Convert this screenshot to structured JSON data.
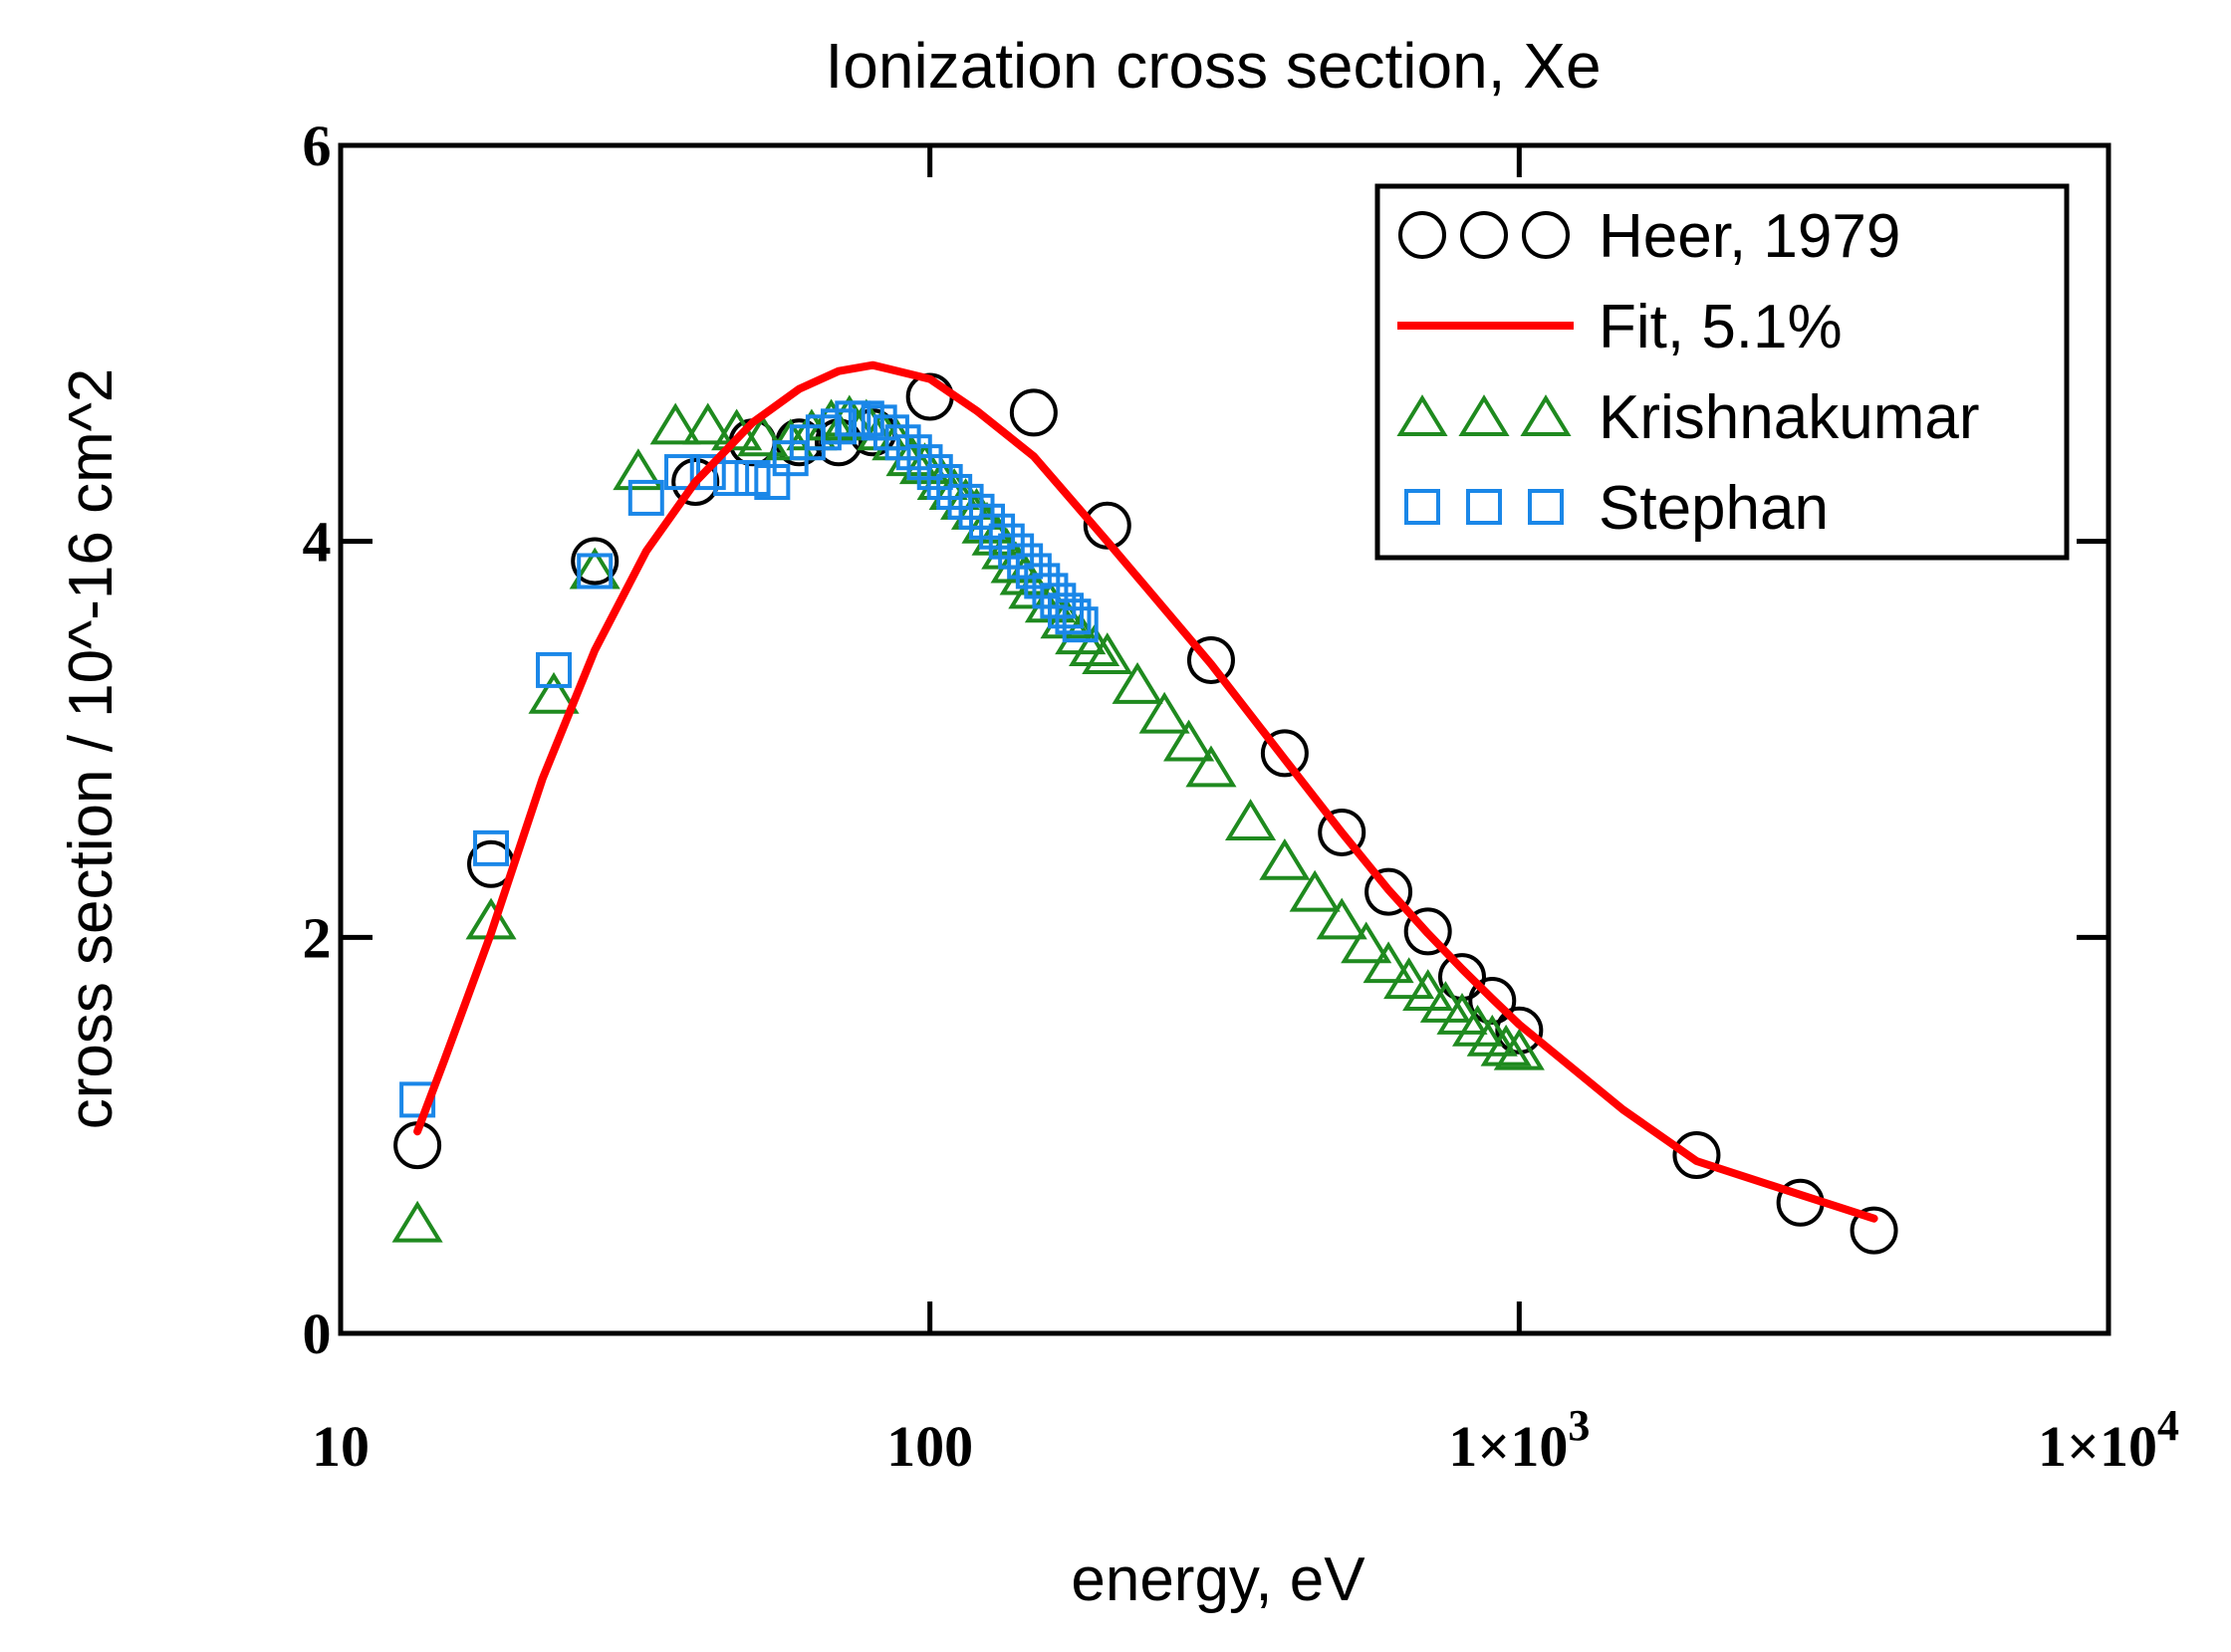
{
  "chart_data": {
    "type": "scatter",
    "title": "Ionization cross section, Xe",
    "xlabel": "energy, eV",
    "ylabel": "cross section / 10^-16 cm^2",
    "xscale": "log",
    "xlim": [
      10,
      10000
    ],
    "ylim": [
      0,
      6
    ],
    "grid": false,
    "legend_position": "top-right",
    "x_ticks": [
      {
        "value": 10,
        "label": "10"
      },
      {
        "value": 100,
        "label": "100"
      },
      {
        "value": 1000,
        "label": "1×10",
        "exp": "3"
      },
      {
        "value": 10000,
        "label": "1×10",
        "exp": "4"
      }
    ],
    "y_ticks": [
      {
        "value": 0,
        "label": "0"
      },
      {
        "value": 2,
        "label": "2"
      },
      {
        "value": 4,
        "label": "4"
      },
      {
        "value": 6,
        "label": "6"
      }
    ],
    "series": [
      {
        "name": "Heer, 1979",
        "marker": "circle",
        "color": "#000000",
        "legend_label": "Heer, 1979",
        "x": [
          13.5,
          18,
          27,
          40,
          50,
          60,
          70,
          80,
          100,
          150,
          200,
          300,
          400,
          500,
          600,
          700,
          800,
          900,
          1000,
          2000,
          3000,
          4000
        ],
        "y": [
          0.95,
          2.37,
          3.9,
          4.3,
          4.5,
          4.5,
          4.5,
          4.55,
          4.73,
          4.65,
          4.08,
          3.4,
          2.93,
          2.53,
          2.23,
          2.03,
          1.8,
          1.68,
          1.53,
          0.9,
          0.66,
          0.52
        ]
      },
      {
        "name": "Fit, 5.1%",
        "marker": "line",
        "color": "#ff0000",
        "legend_label": "Fit, 5.1%",
        "x": [
          13.5,
          15,
          18,
          22,
          27,
          33,
          40,
          50,
          60,
          70,
          80,
          100,
          120,
          150,
          200,
          300,
          400,
          500,
          600,
          700,
          800,
          900,
          1000,
          1500,
          2000,
          3000,
          4000
        ],
        "y": [
          1.02,
          1.38,
          2.02,
          2.8,
          3.45,
          3.95,
          4.3,
          4.6,
          4.77,
          4.86,
          4.89,
          4.82,
          4.66,
          4.43,
          4.0,
          3.38,
          2.9,
          2.53,
          2.24,
          2.02,
          1.84,
          1.69,
          1.56,
          1.13,
          0.87,
          0.7,
          0.58
        ]
      },
      {
        "name": "Krishnakumar",
        "marker": "triangle",
        "color": "#1f8a1f",
        "legend_label": "Krishnakumar",
        "x": [
          13.5,
          18,
          23,
          27,
          32,
          37,
          42,
          47,
          52,
          58,
          63,
          68,
          73,
          78,
          83,
          88,
          93,
          98,
          105,
          110,
          115,
          120,
          125,
          130,
          135,
          140,
          145,
          150,
          160,
          170,
          180,
          190,
          200,
          225,
          250,
          275,
          300,
          350,
          400,
          450,
          500,
          550,
          600,
          650,
          700,
          750,
          800,
          850,
          900,
          950,
          1000
        ],
        "y": [
          0.55,
          2.08,
          3.22,
          3.85,
          4.35,
          4.58,
          4.58,
          4.55,
          4.52,
          4.5,
          4.55,
          4.6,
          4.62,
          4.6,
          4.55,
          4.5,
          4.42,
          4.38,
          4.3,
          4.25,
          4.2,
          4.15,
          4.08,
          4.02,
          3.95,
          3.88,
          3.82,
          3.75,
          3.68,
          3.6,
          3.52,
          3.46,
          3.42,
          3.27,
          3.12,
          2.98,
          2.85,
          2.58,
          2.38,
          2.22,
          2.08,
          1.96,
          1.86,
          1.78,
          1.72,
          1.66,
          1.6,
          1.54,
          1.49,
          1.44,
          1.42
        ]
      },
      {
        "name": "Stephan",
        "marker": "square",
        "color": "#1a87e8",
        "legend_label": "Stephan",
        "x": [
          13.5,
          18,
          23,
          27,
          33,
          38,
          42,
          46,
          50,
          54,
          58,
          62,
          66,
          70,
          74,
          78,
          82,
          86,
          90,
          94,
          98,
          102,
          106,
          110,
          115,
          120,
          125,
          130,
          135,
          140,
          145,
          150,
          155,
          160,
          165,
          170,
          175,
          180
        ],
        "y": [
          1.18,
          2.45,
          3.35,
          3.85,
          4.22,
          4.35,
          4.35,
          4.32,
          4.32,
          4.3,
          4.42,
          4.5,
          4.55,
          4.58,
          4.62,
          4.62,
          4.6,
          4.55,
          4.5,
          4.45,
          4.4,
          4.35,
          4.3,
          4.25,
          4.2,
          4.15,
          4.1,
          4.05,
          4.0,
          3.95,
          3.9,
          3.85,
          3.8,
          3.75,
          3.7,
          3.65,
          3.62,
          3.58
        ]
      }
    ]
  }
}
